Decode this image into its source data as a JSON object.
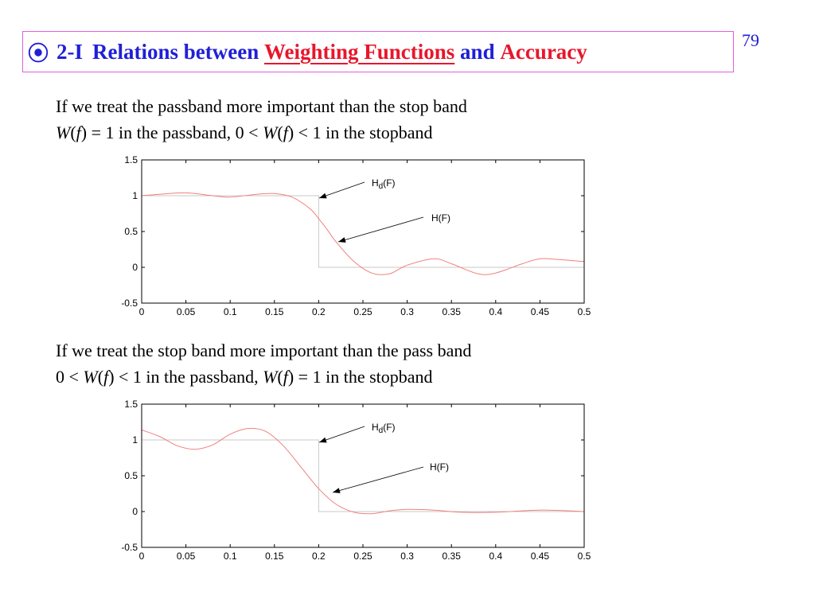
{
  "slide": {
    "bullet": "⦿",
    "title_prefix": "2-I",
    "title_main": "Relations between",
    "title_highlight": "Weighting Functions",
    "title_and": "and",
    "title_accuracy": "Accuracy",
    "page_number": "79"
  },
  "paragraph1": {
    "line1": "If we treat the passband more important than the stop band",
    "line2": {
      "w1": "W",
      "p1": "(",
      "f1": "f",
      "r1": ") = 1 in the passband,   0 < ",
      "w2": "W",
      "p2": "(",
      "f2": "f",
      "r2": ") < 1 in the stopband"
    }
  },
  "paragraph2": {
    "line1": "If we treat the stop band more important than the pass band",
    "line2": {
      "a": "0 < ",
      "w1": "W",
      "p1": "(",
      "f1": "f",
      "r1": ") < 1 in the passband,   ",
      "w2": "W",
      "p2": "(",
      "f2": "f",
      "r2": ") = 1 in the stopband"
    }
  },
  "chart_data": [
    {
      "type": "line",
      "x_ticks": [
        "0",
        "0.05",
        "0.1",
        "0.15",
        "0.2",
        "0.25",
        "0.3",
        "0.35",
        "0.4",
        "0.45",
        "0.5"
      ],
      "y_ticks": [
        "1.5",
        "1",
        "0.5",
        "0",
        "-0.5"
      ],
      "xlim": [
        0,
        0.5
      ],
      "ylim": [
        -0.5,
        1.5
      ],
      "annotations": [
        {
          "label_main": "H",
          "label_sub": "d",
          "label_rest": "(F)"
        },
        {
          "label": "H(F)"
        }
      ],
      "series": [
        {
          "name": "Hd(F)",
          "color": "#c8c8c8",
          "x": [
            0,
            0.2,
            0.2,
            0.5
          ],
          "y": [
            1,
            1,
            0,
            0
          ]
        },
        {
          "name": "H(F)",
          "color": "#f08080",
          "x": [
            0,
            0.02,
            0.05,
            0.08,
            0.1,
            0.13,
            0.15,
            0.17,
            0.19,
            0.2,
            0.21,
            0.22,
            0.24,
            0.26,
            0.28,
            0.3,
            0.33,
            0.35,
            0.38,
            0.4,
            0.43,
            0.45,
            0.47,
            0.5
          ],
          "y": [
            1.0,
            1.02,
            1.04,
            1.0,
            0.98,
            1.02,
            1.03,
            0.98,
            0.82,
            0.68,
            0.52,
            0.35,
            0.08,
            -0.08,
            -0.09,
            0.03,
            0.12,
            0.05,
            -0.09,
            -0.08,
            0.05,
            0.12,
            0.11,
            0.08
          ]
        }
      ]
    },
    {
      "type": "line",
      "x_ticks": [
        "0",
        "0.05",
        "0.1",
        "0.15",
        "0.2",
        "0.25",
        "0.3",
        "0.35",
        "0.4",
        "0.45",
        "0.5"
      ],
      "y_ticks": [
        "1.5",
        "1",
        "0.5",
        "0",
        "-0.5"
      ],
      "xlim": [
        0,
        0.5
      ],
      "ylim": [
        -0.5,
        1.5
      ],
      "annotations": [
        {
          "label_main": "H",
          "label_sub": "d",
          "label_rest": "(F)"
        },
        {
          "label": "H(F)"
        }
      ],
      "series": [
        {
          "name": "Hd(F)",
          "color": "#c8c8c8",
          "x": [
            0,
            0.2,
            0.2,
            0.5
          ],
          "y": [
            1,
            1,
            0,
            0
          ]
        },
        {
          "name": "H(F)",
          "color": "#f08080",
          "x": [
            0,
            0.02,
            0.04,
            0.06,
            0.08,
            0.1,
            0.12,
            0.14,
            0.16,
            0.18,
            0.2,
            0.22,
            0.24,
            0.26,
            0.28,
            0.3,
            0.33,
            0.36,
            0.4,
            0.45,
            0.5
          ],
          "y": [
            1.14,
            1.05,
            0.92,
            0.87,
            0.93,
            1.08,
            1.16,
            1.12,
            0.92,
            0.62,
            0.32,
            0.1,
            -0.01,
            -0.03,
            0.01,
            0.03,
            0.02,
            -0.01,
            -0.01,
            0.02,
            0.0
          ]
        }
      ]
    }
  ]
}
